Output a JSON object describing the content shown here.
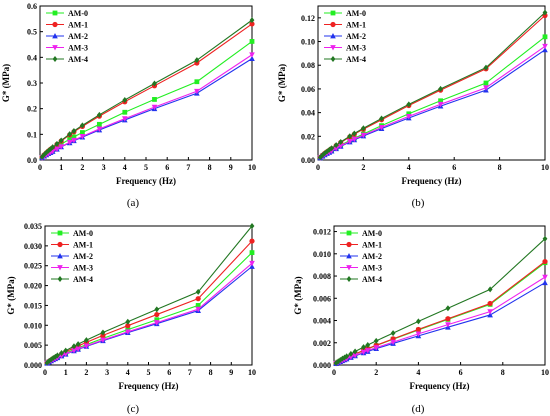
{
  "chart_data": [
    {
      "type": "line",
      "caption": "(a)",
      "xlabel": "Frequency (Hz)",
      "ylabel": "G* (MPa)",
      "xlim": [
        0,
        10
      ],
      "ylim": [
        0,
        0.6
      ],
      "xticks": [
        "0",
        "1",
        "2",
        "3",
        "4",
        "5",
        "6",
        "7",
        "8",
        "9",
        "10"
      ],
      "yticks": [
        "0.0",
        "0.1",
        "0.2",
        "0.3",
        "0.4",
        "0.5",
        "0.6"
      ],
      "legend_position": "top-left",
      "x": [
        0.1,
        0.2,
        0.3,
        0.4,
        0.5,
        0.6,
        0.8,
        1.0,
        1.4,
        1.6,
        2.0,
        2.8,
        4.0,
        5.4,
        7.4,
        10.0
      ],
      "series": [
        {
          "name": "AM-0",
          "color": "#22ee22",
          "marker": "square",
          "values": [
            0.01,
            0.017,
            0.023,
            0.029,
            0.035,
            0.04,
            0.051,
            0.062,
            0.081,
            0.09,
            0.107,
            0.139,
            0.186,
            0.236,
            0.305,
            0.462
          ]
        },
        {
          "name": "AM-1",
          "color": "#ee2222",
          "marker": "circle",
          "values": [
            0.011,
            0.02,
            0.028,
            0.035,
            0.042,
            0.048,
            0.061,
            0.074,
            0.098,
            0.11,
            0.131,
            0.171,
            0.227,
            0.289,
            0.378,
            0.53
          ]
        },
        {
          "name": "AM-2",
          "color": "#2233ee",
          "marker": "triangle-up",
          "values": [
            0.009,
            0.015,
            0.02,
            0.025,
            0.029,
            0.033,
            0.042,
            0.051,
            0.067,
            0.075,
            0.089,
            0.117,
            0.156,
            0.2,
            0.26,
            0.395
          ]
        },
        {
          "name": "AM-3",
          "color": "#ee22ee",
          "marker": "triangle-down",
          "values": [
            0.009,
            0.015,
            0.02,
            0.025,
            0.03,
            0.034,
            0.043,
            0.052,
            0.069,
            0.077,
            0.092,
            0.121,
            0.161,
            0.206,
            0.268,
            0.41
          ]
        },
        {
          "name": "AM-4",
          "color": "#227722",
          "marker": "diamond",
          "values": [
            0.012,
            0.021,
            0.029,
            0.036,
            0.043,
            0.05,
            0.063,
            0.076,
            0.101,
            0.113,
            0.135,
            0.176,
            0.234,
            0.298,
            0.389,
            0.545
          ]
        }
      ]
    },
    {
      "type": "line",
      "caption": "(b)",
      "xlabel": "Frequency (Hz)",
      "ylabel": "G* (MPa)",
      "xlim": [
        0,
        10
      ],
      "ylim": [
        0,
        0.13
      ],
      "xticks": [
        "0",
        "2",
        "4",
        "6",
        "8",
        "10"
      ],
      "yticks": [
        "0.00",
        "0.02",
        "0.04",
        "0.06",
        "0.08",
        "0.10",
        "0.12"
      ],
      "legend_position": "top-left",
      "x": [
        0.1,
        0.2,
        0.3,
        0.4,
        0.5,
        0.6,
        0.8,
        1.0,
        1.4,
        1.6,
        2.0,
        2.8,
        4.0,
        5.4,
        7.4,
        10.0
      ],
      "series": [
        {
          "name": "AM-0",
          "color": "#22ee22",
          "marker": "square",
          "values": [
            0.002,
            0.0035,
            0.0048,
            0.006,
            0.0071,
            0.0082,
            0.0104,
            0.0125,
            0.0165,
            0.0184,
            0.022,
            0.029,
            0.039,
            0.05,
            0.065,
            0.104
          ]
        },
        {
          "name": "AM-1",
          "color": "#ee2222",
          "marker": "circle",
          "values": [
            0.0022,
            0.004,
            0.0056,
            0.007,
            0.0083,
            0.0096,
            0.0122,
            0.0148,
            0.0195,
            0.0218,
            0.026,
            0.034,
            0.046,
            0.059,
            0.077,
            0.122
          ]
        },
        {
          "name": "AM-2",
          "color": "#2233ee",
          "marker": "triangle-up",
          "values": [
            0.0018,
            0.0032,
            0.0044,
            0.0055,
            0.0065,
            0.0075,
            0.0095,
            0.0115,
            0.0152,
            0.017,
            0.0203,
            0.0265,
            0.0355,
            0.0455,
            0.059,
            0.093
          ]
        },
        {
          "name": "AM-3",
          "color": "#ee22ee",
          "marker": "triangle-down",
          "values": [
            0.0019,
            0.0033,
            0.0046,
            0.0057,
            0.0067,
            0.0078,
            0.0098,
            0.0119,
            0.0157,
            0.0176,
            0.021,
            0.0275,
            0.0368,
            0.047,
            0.061,
            0.096
          ]
        },
        {
          "name": "AM-4",
          "color": "#227722",
          "marker": "diamond",
          "values": [
            0.0023,
            0.0041,
            0.0058,
            0.0072,
            0.0086,
            0.0099,
            0.0126,
            0.0152,
            0.0201,
            0.0224,
            0.0268,
            0.035,
            0.047,
            0.06,
            0.078,
            0.1245
          ]
        }
      ]
    },
    {
      "type": "line",
      "caption": "(c)",
      "xlabel": "Frequency (Hz)",
      "ylabel": "G* (MPa)",
      "xlim": [
        0,
        10
      ],
      "ylim": [
        0,
        0.035
      ],
      "xticks": [
        "0",
        "1",
        "2",
        "3",
        "4",
        "5",
        "6",
        "7",
        "8",
        "9",
        "10"
      ],
      "yticks": [
        "0.000",
        "0.005",
        "0.010",
        "0.015",
        "0.020",
        "0.025",
        "0.030",
        "0.035"
      ],
      "legend_position": "top-left",
      "x": [
        0.1,
        0.2,
        0.3,
        0.4,
        0.5,
        0.6,
        0.8,
        1.0,
        1.4,
        1.6,
        2.0,
        2.8,
        4.0,
        5.4,
        7.4,
        10.0
      ],
      "series": [
        {
          "name": "AM-0",
          "color": "#22ee22",
          "marker": "square",
          "values": [
            0.0005,
            0.00085,
            0.00117,
            0.00146,
            0.00174,
            0.002,
            0.0025,
            0.00298,
            0.00388,
            0.00431,
            0.00513,
            0.0067,
            0.0089,
            0.0114,
            0.015,
            0.0283
          ]
        },
        {
          "name": "AM-1",
          "color": "#ee2222",
          "marker": "circle",
          "values": [
            0.00054,
            0.00093,
            0.00128,
            0.0016,
            0.00191,
            0.0022,
            0.00276,
            0.0033,
            0.0043,
            0.00478,
            0.0057,
            0.00745,
            0.0099,
            0.0127,
            0.0167,
            0.0312
          ]
        },
        {
          "name": "AM-2",
          "color": "#2233ee",
          "marker": "triangle-up",
          "values": [
            0.00045,
            0.00077,
            0.00106,
            0.00133,
            0.00158,
            0.00182,
            0.00228,
            0.00272,
            0.00355,
            0.00394,
            0.0047,
            0.00612,
            0.00815,
            0.0104,
            0.0137,
            0.0248
          ]
        },
        {
          "name": "AM-3",
          "color": "#ee22ee",
          "marker": "triangle-down",
          "values": [
            0.00046,
            0.00079,
            0.00109,
            0.00136,
            0.00162,
            0.00187,
            0.00234,
            0.00279,
            0.00364,
            0.00404,
            0.00482,
            0.00628,
            0.00836,
            0.01068,
            0.01405,
            0.0256
          ]
        },
        {
          "name": "AM-4",
          "color": "#227722",
          "marker": "diamond",
          "values": [
            0.00058,
            0.00101,
            0.0014,
            0.00175,
            0.00209,
            0.00241,
            0.00302,
            0.00362,
            0.00472,
            0.00525,
            0.00626,
            0.00818,
            0.0109,
            0.014,
            0.0184,
            0.035
          ]
        }
      ]
    },
    {
      "type": "line",
      "caption": "(d)",
      "xlabel": "Frequency (Hz)",
      "ylabel": "G* (MPa)",
      "xlim": [
        0,
        10
      ],
      "ylim": [
        0,
        0.0125
      ],
      "xticks": [
        "0",
        "2",
        "4",
        "6",
        "8",
        "10"
      ],
      "yticks": [
        "0.000",
        "0.002",
        "0.004",
        "0.006",
        "0.008",
        "0.010",
        "0.012"
      ],
      "legend_position": "top-left",
      "x": [
        0.1,
        0.2,
        0.3,
        0.4,
        0.5,
        0.6,
        0.8,
        1.0,
        1.4,
        1.6,
        2.0,
        2.8,
        4.0,
        5.4,
        7.4,
        10.0
      ],
      "series": [
        {
          "name": "AM-0",
          "color": "#22ee22",
          "marker": "square",
          "values": [
            0.00015,
            0.00026,
            0.00036,
            0.00046,
            0.00055,
            0.00064,
            0.00081,
            0.00098,
            0.0013,
            0.00145,
            0.00175,
            0.00232,
            0.00315,
            0.0041,
            0.00545,
            0.0092
          ]
        },
        {
          "name": "AM-1",
          "color": "#ee2222",
          "marker": "circle",
          "values": [
            0.00016,
            0.00027,
            0.00037,
            0.00047,
            0.00056,
            0.00065,
            0.00082,
            0.00099,
            0.00131,
            0.00147,
            0.00177,
            0.00235,
            0.0032,
            0.00416,
            0.00553,
            0.0093
          ]
        },
        {
          "name": "AM-2",
          "color": "#2233ee",
          "marker": "triangle-up",
          "values": [
            0.00013,
            0.00022,
            0.00031,
            0.00039,
            0.00046,
            0.00054,
            0.00068,
            0.00082,
            0.00109,
            0.00122,
            0.00147,
            0.00194,
            0.00262,
            0.0034,
            0.0045,
            0.0074
          ]
        },
        {
          "name": "AM-3",
          "color": "#ee22ee",
          "marker": "triangle-down",
          "values": [
            0.00014,
            0.00023,
            0.00033,
            0.00041,
            0.00049,
            0.00057,
            0.00072,
            0.00087,
            0.00116,
            0.0013,
            0.00156,
            0.00206,
            0.0028,
            0.00363,
            0.0048,
            0.0079
          ]
        },
        {
          "name": "AM-4",
          "color": "#227722",
          "marker": "diamond",
          "values": [
            0.00018,
            0.00032,
            0.00045,
            0.00057,
            0.00068,
            0.00079,
            0.001,
            0.00121,
            0.00161,
            0.0018,
            0.00217,
            0.00287,
            0.00392,
            0.0051,
            0.0068,
            0.01135
          ]
        }
      ]
    }
  ]
}
